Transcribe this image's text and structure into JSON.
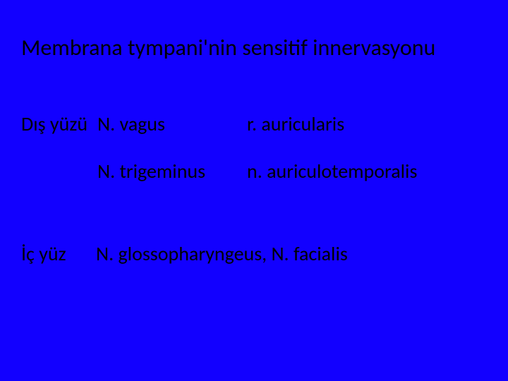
{
  "slide": {
    "title": "Membrana tympani'nin sensitif innervasyonu",
    "background_color": "#1200ff",
    "text_color": "#000000",
    "title_fontsize": 32,
    "body_fontsize": 28,
    "rows": {
      "outer": {
        "label": "Dış yüzü",
        "nerve1": "N. vagus",
        "branch1": "r. auricularis",
        "nerve2": "N. trigeminus",
        "branch2": "n. auriculotemporalis"
      },
      "inner": {
        "label": "İç yüz",
        "nerves": "N. glossopharyngeus, N. facialis"
      }
    }
  }
}
